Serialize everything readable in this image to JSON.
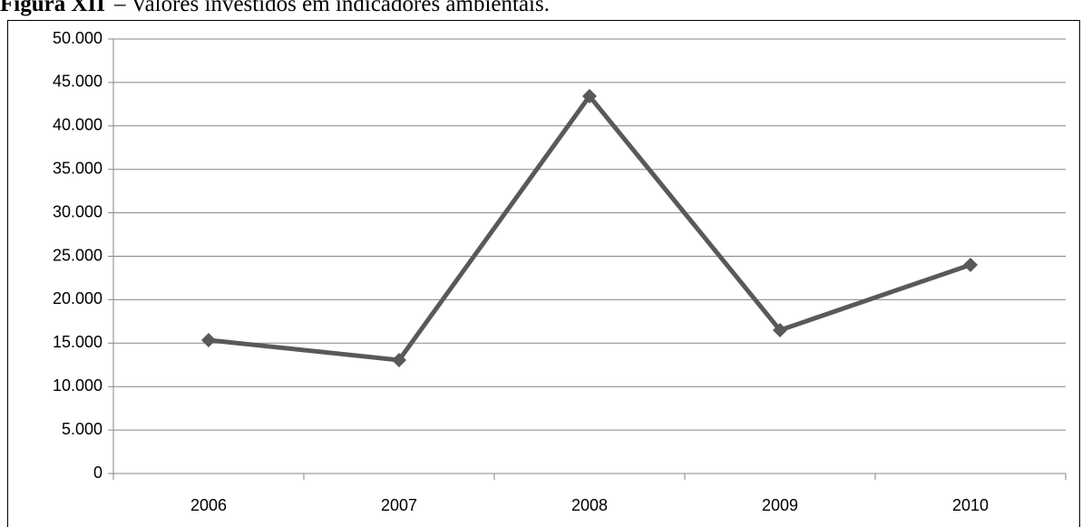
{
  "chart_data": {
    "type": "line",
    "title_label": "Figura XII",
    "title": "– Valores investidos em indicadores ambientais.",
    "categories": [
      "2006",
      "2007",
      "2008",
      "2009",
      "2010"
    ],
    "series": [
      {
        "color": "#595959",
        "values": [
          15350,
          13050,
          43420,
          16490,
          24010
        ]
      }
    ],
    "ylim": [
      0,
      50000
    ],
    "yticks": [
      0,
      {
        "value": 5000,
        "label": "5.000"
      },
      {
        "value": 10000,
        "label": "10.000"
      },
      {
        "value": 15000,
        "label": "15.000"
      },
      {
        "value": 20000,
        "label": "20.000"
      },
      {
        "value": 25000,
        "label": "25.000"
      },
      {
        "value": 30000,
        "label": "30.000"
      },
      {
        "value": 35000,
        "label": "35.000"
      },
      {
        "value": 40000,
        "label": "40.000"
      },
      {
        "value": 45000,
        "label": "45.000"
      },
      {
        "value": 50000,
        "label": "50.000"
      }
    ],
    "grid": true
  }
}
